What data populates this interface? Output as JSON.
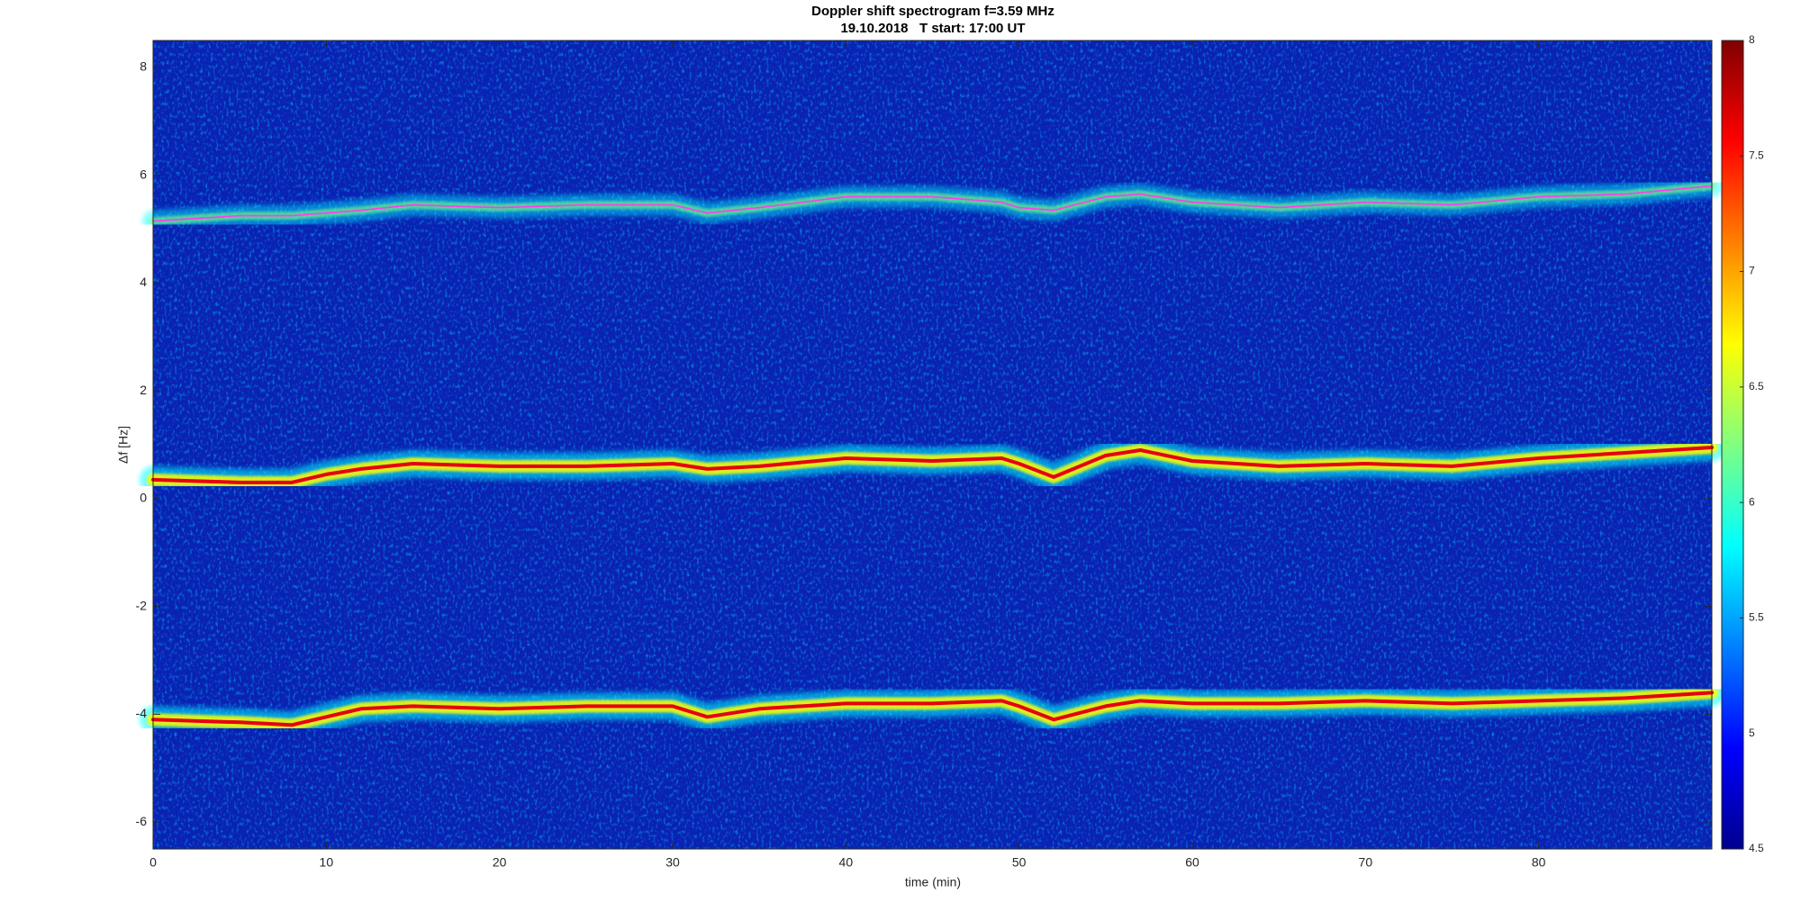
{
  "chart_data": {
    "type": "spectrogram",
    "title": "Doppler shift spectrogram f=3.59 MHz",
    "subtitle": "19.10.2018   T start: 17:00 UT",
    "x_label": "time (min)",
    "y_label": "Δf [Hz]",
    "x": [
      0,
      5,
      8,
      10,
      12,
      15,
      20,
      25,
      30,
      32,
      35,
      40,
      45,
      49,
      50,
      52,
      55,
      57,
      60,
      65,
      70,
      75,
      80,
      85,
      90
    ],
    "series": [
      {
        "color": "#ff3cf0",
        "values": [
          5.15,
          5.25,
          5.25,
          5.3,
          5.35,
          5.45,
          5.4,
          5.45,
          5.45,
          5.3,
          5.4,
          5.6,
          5.6,
          5.5,
          5.4,
          5.35,
          5.6,
          5.65,
          5.5,
          5.4,
          5.5,
          5.45,
          5.6,
          5.65,
          5.8
        ]
      },
      {
        "color": "#e60012",
        "values": [
          0.35,
          0.3,
          0.3,
          0.45,
          0.55,
          0.65,
          0.6,
          0.6,
          0.65,
          0.55,
          0.6,
          0.75,
          0.7,
          0.75,
          0.65,
          0.4,
          0.8,
          0.9,
          0.7,
          0.6,
          0.65,
          0.6,
          0.75,
          0.85,
          0.95
        ]
      },
      {
        "color": "#e60012",
        "values": [
          -4.1,
          -4.15,
          -4.2,
          -4.05,
          -3.9,
          -3.85,
          -3.9,
          -3.85,
          -3.85,
          -4.05,
          -3.9,
          -3.8,
          -3.8,
          -3.75,
          -3.85,
          -4.1,
          -3.85,
          -3.75,
          -3.8,
          -3.8,
          -3.75,
          -3.8,
          -3.75,
          -3.7,
          -3.6
        ]
      }
    ],
    "xlim": [
      0,
      90
    ],
    "xticks": [
      0,
      10,
      20,
      30,
      40,
      50,
      60,
      70,
      80
    ],
    "ylim": [
      -6.5,
      8.5
    ],
    "yticks": [
      -6,
      -4,
      -2,
      0,
      2,
      4,
      6,
      8
    ],
    "clim": [
      4.5,
      8
    ],
    "cticks": [
      4.5,
      5,
      5.5,
      6,
      6.5,
      7,
      7.5,
      8
    ],
    "colormap": [
      "#00008f",
      "#0000ff",
      "#0080ff",
      "#00ffff",
      "#80ff80",
      "#ffff00",
      "#ff8000",
      "#ff0000",
      "#800000"
    ],
    "background_color": "#0a22b4"
  }
}
